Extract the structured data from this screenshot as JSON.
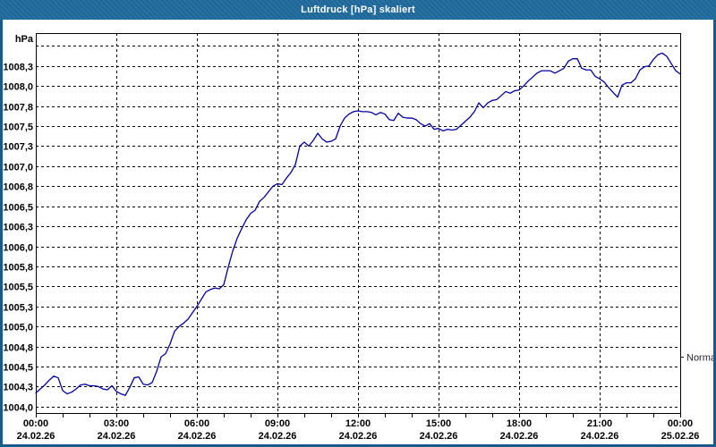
{
  "window": {
    "title": "Luftdruck [hPa] skaliert"
  },
  "colors": {
    "titlebar": "#1e6a9c",
    "frame": "#175a8c",
    "plot_border": "#000000",
    "grid": "#000000",
    "text": "#000000",
    "line": "#0000a0",
    "background": "#ffffff"
  },
  "chart_data": {
    "type": "line",
    "title": "Luftdruck [hPa] skaliert",
    "ylabel": "hPa",
    "xlabel": "",
    "grid": true,
    "legend": "none",
    "y_axis": {
      "min": 1003.92,
      "max": 1008.66,
      "ticks": [
        {
          "value": 1004.0,
          "label": "1004,0"
        },
        {
          "value": 1004.25,
          "label": "1004,3"
        },
        {
          "value": 1004.5,
          "label": "1004,5"
        },
        {
          "value": 1004.75,
          "label": "1004,8"
        },
        {
          "value": 1005.0,
          "label": "1005,0"
        },
        {
          "value": 1005.25,
          "label": "1005,3"
        },
        {
          "value": 1005.5,
          "label": "1005,5"
        },
        {
          "value": 1005.75,
          "label": "1005,8"
        },
        {
          "value": 1006.0,
          "label": "1006,0"
        },
        {
          "value": 1006.25,
          "label": "1006,3"
        },
        {
          "value": 1006.5,
          "label": "1006,5"
        },
        {
          "value": 1006.75,
          "label": "1006,8"
        },
        {
          "value": 1007.0,
          "label": "1007,0"
        },
        {
          "value": 1007.25,
          "label": "1007,3"
        },
        {
          "value": 1007.5,
          "label": "1007,5"
        },
        {
          "value": 1007.75,
          "label": "1007,8"
        },
        {
          "value": 1008.0,
          "label": "1008,0"
        },
        {
          "value": 1008.25,
          "label": "1008,3"
        },
        {
          "value": 1008.5,
          "label": ""
        }
      ]
    },
    "x_axis": {
      "min_hour": 0,
      "max_hour": 24,
      "minor_tick_hours": 1,
      "grid_every_hours": 3,
      "ticks": [
        {
          "hour": 0,
          "time": "00:00",
          "date": "24.02.26"
        },
        {
          "hour": 3,
          "time": "03:00",
          "date": "24.02.26"
        },
        {
          "hour": 6,
          "time": "06:00",
          "date": "24.02.26"
        },
        {
          "hour": 9,
          "time": "09:00",
          "date": "24.02.26"
        },
        {
          "hour": 12,
          "time": "12:00",
          "date": "24.02.26"
        },
        {
          "hour": 15,
          "time": "15:00",
          "date": "24.02.26"
        },
        {
          "hour": 18,
          "time": "18:00",
          "date": "24.02.26"
        },
        {
          "hour": 21,
          "time": "21:00",
          "date": "24.02.26"
        },
        {
          "hour": 24,
          "time": "00:00",
          "date": "25.02.26"
        }
      ]
    },
    "series": [
      {
        "name": "Luftdruck",
        "color": "#0000a0",
        "x_start_hour": 0,
        "x_step_minutes": 10,
        "values": [
          1004.17,
          1004.22,
          1004.27,
          1004.33,
          1004.38,
          1004.36,
          1004.2,
          1004.16,
          1004.18,
          1004.22,
          1004.27,
          1004.28,
          1004.26,
          1004.26,
          1004.25,
          1004.22,
          1004.21,
          1004.26,
          1004.19,
          1004.16,
          1004.14,
          1004.24,
          1004.36,
          1004.37,
          1004.28,
          1004.27,
          1004.3,
          1004.44,
          1004.62,
          1004.66,
          1004.78,
          1004.94,
          1005.0,
          1005.04,
          1005.09,
          1005.17,
          1005.25,
          1005.34,
          1005.43,
          1005.46,
          1005.48,
          1005.47,
          1005.52,
          1005.74,
          1005.94,
          1006.1,
          1006.22,
          1006.33,
          1006.41,
          1006.45,
          1006.56,
          1006.61,
          1006.68,
          1006.75,
          1006.78,
          1006.77,
          1006.85,
          1006.92,
          1007.02,
          1007.25,
          1007.3,
          1007.25,
          1007.32,
          1007.41,
          1007.34,
          1007.3,
          1007.31,
          1007.34,
          1007.5,
          1007.6,
          1007.65,
          1007.68,
          1007.69,
          1007.68,
          1007.68,
          1007.67,
          1007.64,
          1007.67,
          1007.65,
          1007.58,
          1007.57,
          1007.66,
          1007.61,
          1007.6,
          1007.6,
          1007.58,
          1007.53,
          1007.5,
          1007.53,
          1007.46,
          1007.47,
          1007.44,
          1007.46,
          1007.45,
          1007.46,
          1007.51,
          1007.56,
          1007.61,
          1007.68,
          1007.79,
          1007.73,
          1007.79,
          1007.82,
          1007.83,
          1007.88,
          1007.93,
          1007.91,
          1007.94,
          1007.95,
          1008.0,
          1008.06,
          1008.11,
          1008.16,
          1008.19,
          1008.19,
          1008.19,
          1008.16,
          1008.19,
          1008.22,
          1008.31,
          1008.34,
          1008.34,
          1008.22,
          1008.2,
          1008.2,
          1008.12,
          1008.09,
          1008.05,
          1007.98,
          1007.92,
          1007.86,
          1008.01,
          1008.04,
          1008.04,
          1008.09,
          1008.2,
          1008.24,
          1008.25,
          1008.33,
          1008.39,
          1008.41,
          1008.37,
          1008.28,
          1008.19,
          1008.15
        ]
      }
    ],
    "annotations": [
      {
        "label": "Normal",
        "value": 1004.62,
        "side": "right"
      }
    ]
  }
}
